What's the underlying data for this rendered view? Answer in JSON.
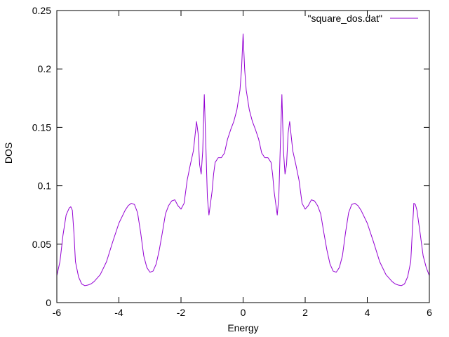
{
  "chart_data": {
    "type": "line",
    "title": "",
    "xlabel": "Energy",
    "ylabel": "DOS",
    "xlim": [
      -6,
      6
    ],
    "ylim": [
      0,
      0.25
    ],
    "x_ticks": [
      -6,
      -4,
      -2,
      0,
      2,
      4,
      6
    ],
    "x_tick_labels": [
      "-6",
      "-4",
      "-2",
      "0",
      "2",
      "4",
      "6"
    ],
    "y_ticks": [
      0,
      0.05,
      0.1,
      0.15,
      0.2,
      0.25
    ],
    "y_tick_labels": [
      "0",
      "0.05",
      "0.1",
      "0.15",
      "0.2",
      "0.25"
    ],
    "grid": false,
    "legend": {
      "placement": "top-right"
    },
    "series": [
      {
        "name": "\"square_dos.dat\"",
        "color": "#9400d3",
        "x": [
          -6.0,
          -5.9,
          -5.8,
          -5.7,
          -5.6,
          -5.55,
          -5.5,
          -5.45,
          -5.4,
          -5.3,
          -5.2,
          -5.1,
          -5.0,
          -4.9,
          -4.8,
          -4.6,
          -4.4,
          -4.2,
          -4.0,
          -3.8,
          -3.7,
          -3.6,
          -3.5,
          -3.4,
          -3.3,
          -3.2,
          -3.1,
          -3.0,
          -2.9,
          -2.8,
          -2.7,
          -2.6,
          -2.5,
          -2.4,
          -2.3,
          -2.2,
          -2.1,
          -2.0,
          -1.9,
          -1.8,
          -1.7,
          -1.6,
          -1.5,
          -1.45,
          -1.4,
          -1.35,
          -1.3,
          -1.25,
          -1.2,
          -1.15,
          -1.1,
          -1.05,
          -1.0,
          -0.95,
          -0.9,
          -0.8,
          -0.7,
          -0.6,
          -0.5,
          -0.4,
          -0.3,
          -0.2,
          -0.1,
          -0.05,
          0.0,
          0.05,
          0.1,
          0.2,
          0.3,
          0.4,
          0.5,
          0.6,
          0.7,
          0.8,
          0.9,
          0.95,
          1.0,
          1.05,
          1.1,
          1.15,
          1.2,
          1.25,
          1.3,
          1.35,
          1.4,
          1.45,
          1.5,
          1.6,
          1.7,
          1.8,
          1.9,
          2.0,
          2.1,
          2.2,
          2.3,
          2.4,
          2.5,
          2.6,
          2.7,
          2.8,
          2.9,
          3.0,
          3.1,
          3.2,
          3.3,
          3.4,
          3.5,
          3.6,
          3.7,
          3.8,
          4.0,
          4.2,
          4.4,
          4.6,
          4.8,
          4.9,
          5.0,
          5.1,
          5.2,
          5.3,
          5.4,
          5.45,
          5.5,
          5.55,
          5.6,
          5.7,
          5.8,
          5.9,
          6.0
        ],
        "y": [
          0.023,
          0.035,
          0.058,
          0.075,
          0.081,
          0.082,
          0.079,
          0.06,
          0.035,
          0.022,
          0.016,
          0.0145,
          0.015,
          0.016,
          0.018,
          0.024,
          0.035,
          0.052,
          0.068,
          0.079,
          0.083,
          0.085,
          0.084,
          0.077,
          0.06,
          0.04,
          0.03,
          0.026,
          0.027,
          0.033,
          0.045,
          0.06,
          0.076,
          0.083,
          0.087,
          0.088,
          0.083,
          0.08,
          0.085,
          0.105,
          0.118,
          0.13,
          0.155,
          0.145,
          0.118,
          0.11,
          0.13,
          0.178,
          0.135,
          0.09,
          0.075,
          0.085,
          0.095,
          0.11,
          0.12,
          0.124,
          0.124,
          0.128,
          0.14,
          0.148,
          0.155,
          0.165,
          0.182,
          0.2,
          0.23,
          0.2,
          0.182,
          0.165,
          0.155,
          0.148,
          0.14,
          0.128,
          0.124,
          0.124,
          0.12,
          0.11,
          0.095,
          0.085,
          0.075,
          0.09,
          0.135,
          0.178,
          0.13,
          0.11,
          0.118,
          0.145,
          0.155,
          0.13,
          0.118,
          0.105,
          0.085,
          0.08,
          0.083,
          0.088,
          0.087,
          0.083,
          0.076,
          0.06,
          0.045,
          0.033,
          0.027,
          0.026,
          0.03,
          0.04,
          0.06,
          0.077,
          0.084,
          0.085,
          0.083,
          0.079,
          0.068,
          0.052,
          0.035,
          0.024,
          0.018,
          0.016,
          0.015,
          0.0145,
          0.016,
          0.022,
          0.035,
          0.06,
          0.085,
          0.084,
          0.079,
          0.06,
          0.04,
          0.03,
          0.023
        ]
      }
    ]
  }
}
